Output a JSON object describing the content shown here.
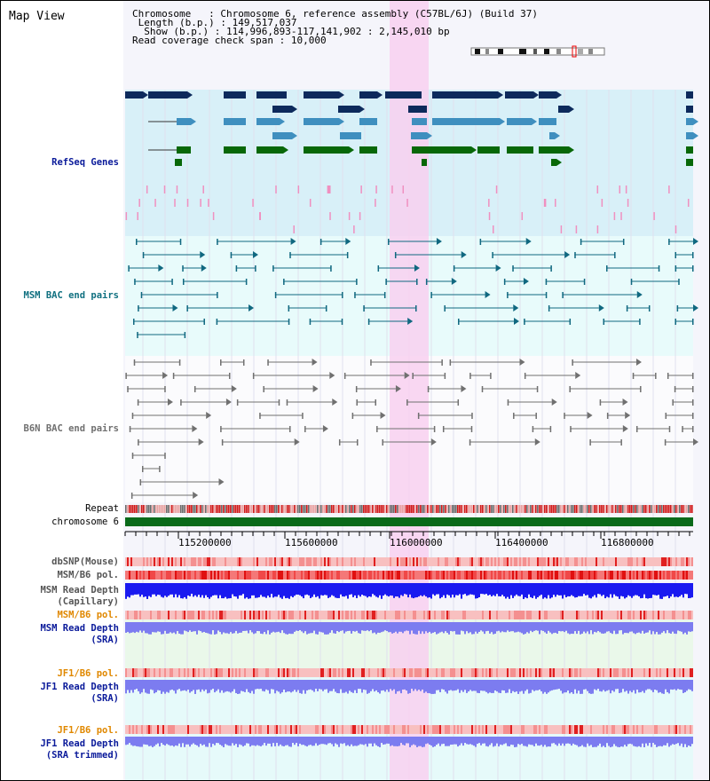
{
  "title": "Map View",
  "info": {
    "chromosome_label": "Chromosome",
    "chromosome_value": "Chromosome 6, reference assembly (C57BL/6J) (Build 37)",
    "length_label": "Length (b.p.)",
    "length_value": "149,517,037",
    "show_label": "Show (b.p.)",
    "show_value": "114,996,893-117,141,902 : 2,145,010 bp",
    "coverage_label": "Read coverage check span",
    "coverage_value": "10,000"
  },
  "tracks": {
    "refseq": "RefSeq Genes",
    "msm_bac": "MSM BAC end pairs",
    "b6n_bac": "B6N BAC end pairs",
    "repeat": "Repeat",
    "chromosome": "chromosome 6",
    "dbsnp": "dbSNP(Mouse)",
    "msm_b6_pol_1": "MSM/B6 pol.",
    "msm_depth_cap_1": "MSM Read Depth",
    "msm_depth_cap_2": "(Capillary)",
    "msm_b6_pol_2": "MSM/B6 pol.",
    "msm_depth_sra_1": "MSM Read Depth",
    "msm_depth_sra_2": "(SRA)",
    "jf1_b6_pol_1": "JF1/B6 pol.",
    "jf1_depth_sra_1": "JF1 Read Depth",
    "jf1_depth_sra_2": "(SRA)",
    "jf1_b6_pol_2": "JF1/B6 pol.",
    "jf1_depth_trim_1": "JF1 Read Depth",
    "jf1_depth_trim_2": "(SRA trimmed)"
  },
  "axis": {
    "ticks": [
      "115200000",
      "115600000",
      "116000000",
      "116400000",
      "116800000"
    ]
  },
  "colors": {
    "refseq_bg": "#d8f0f8",
    "bac_bg": "#e8fbfb",
    "highlight": "#f8d0f0",
    "gene_dark": "#0d2a5c",
    "gene_mid": "#3f8fbf",
    "gene_green": "#086808",
    "msm_bac": "#106880",
    "b6n_bac": "#707070",
    "chromosome": "#0a6a1a",
    "depth_blue": "#1a1af0",
    "depth_light": "#7c7cf0",
    "label_blue": "#0a1a9a",
    "label_teal": "#107080",
    "label_orange": "#e08800"
  }
}
